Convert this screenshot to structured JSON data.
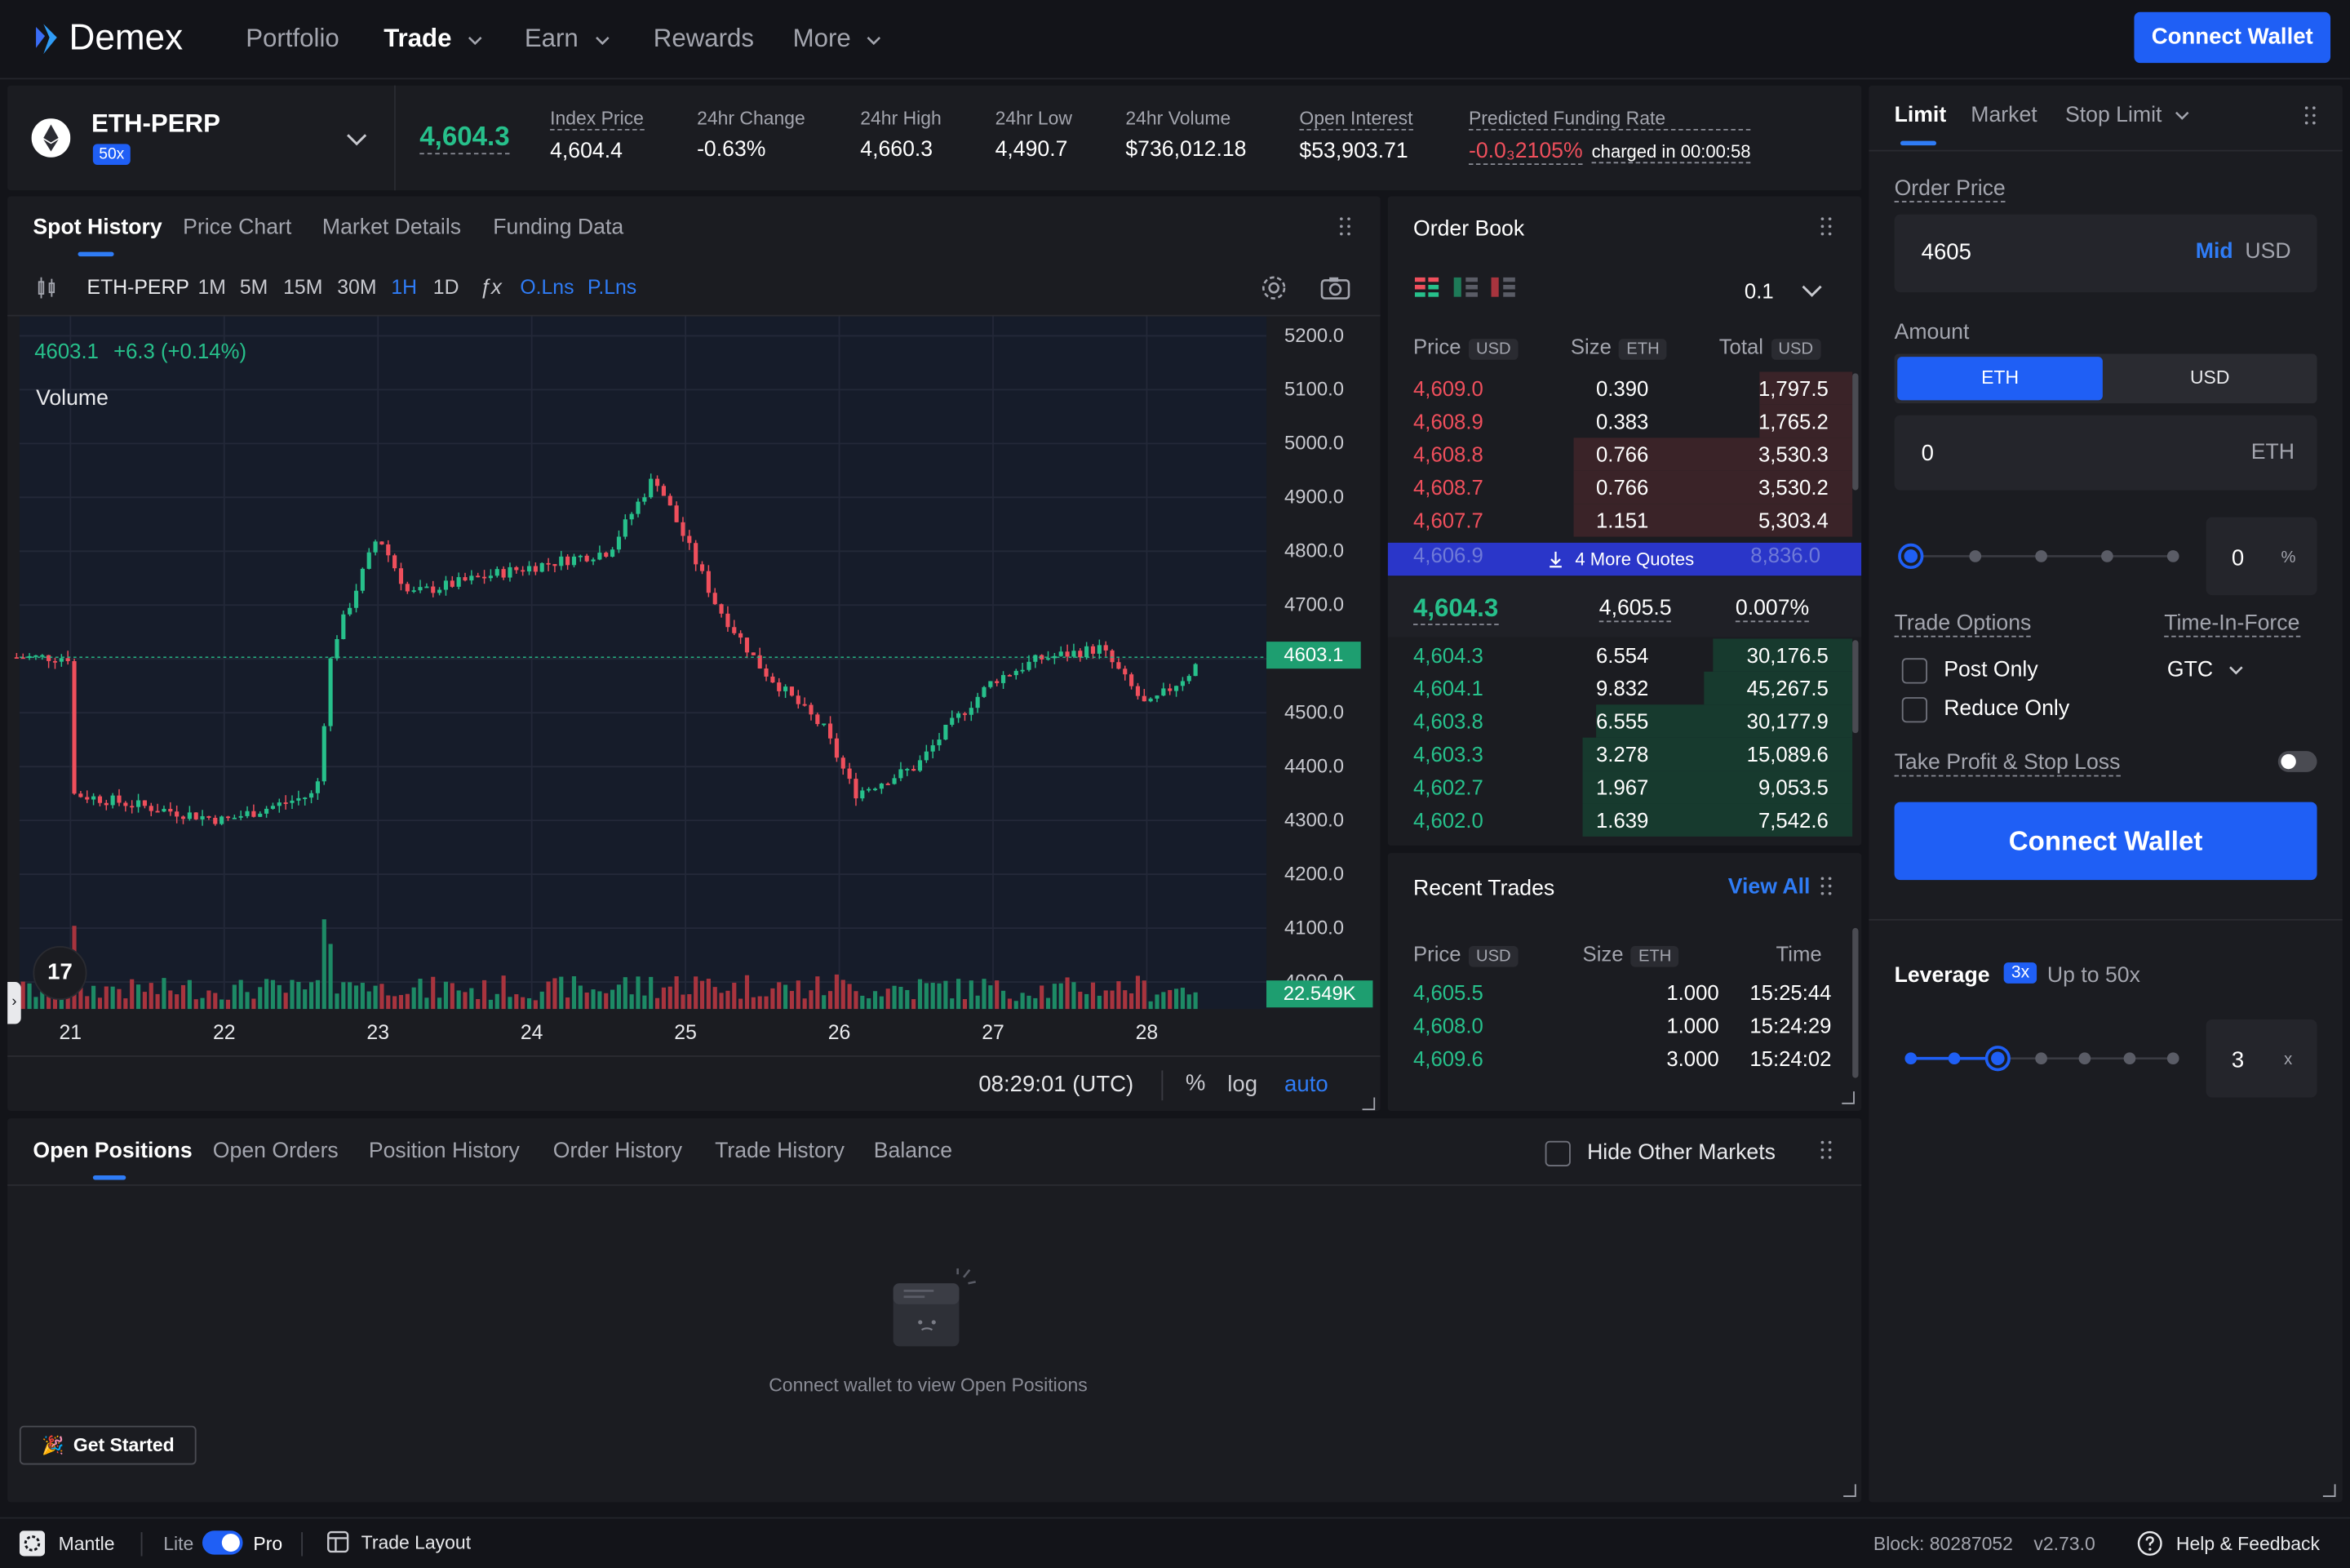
{
  "nav": {
    "logo": "Demex",
    "items": [
      {
        "label": "Portfolio"
      },
      {
        "label": "Trade"
      },
      {
        "label": "Earn"
      },
      {
        "label": "Rewards"
      },
      {
        "label": "More"
      }
    ],
    "connect_label": "Connect Wallet"
  },
  "market": {
    "symbol": "ETH-PERP",
    "leverage_badge": "50x",
    "last_price": "4,604.3",
    "stats": [
      {
        "label": "Index Price",
        "value": "4,604.4",
        "color": "#ffffff"
      },
      {
        "label": "24hr Change",
        "value": "-0.63%",
        "color": "#ef4f5c"
      },
      {
        "label": "24hr High",
        "value": "4,660.3",
        "color": "#27c08b"
      },
      {
        "label": "24hr Low",
        "value": "4,490.7",
        "color": "#ef4f5c"
      },
      {
        "label": "24hr Volume",
        "value": "$736,012.18",
        "color": "#ffffff"
      },
      {
        "label": "Open Interest",
        "value": "$53,903.71",
        "color": "#ffffff"
      }
    ],
    "funding_label": "Predicted Funding Rate",
    "funding_value": "-0.0₃2105%",
    "funding_note": "charged in 00:00:58"
  },
  "chart_panel": {
    "tabs": [
      "Spot History",
      "Price Chart",
      "Market Details",
      "Funding Data"
    ],
    "toolbar": {
      "symbol": "ETH-PERP",
      "intervals": [
        "1M",
        "5M",
        "15M",
        "30M",
        "1H",
        "1D"
      ],
      "active_interval": "1H",
      "indicators": [
        "O.Lns",
        "P.Lns"
      ]
    },
    "legend_price": "4603.1",
    "legend_change": "+6.3 (+0.14%)",
    "volume_label": "Volume",
    "price_tag": "4603.1",
    "volume_tag": "22.549K",
    "clock": "08:29:01 (UTC)",
    "scale_options": [
      "%",
      "log",
      "auto"
    ],
    "tv_logo": "17"
  },
  "chart_data": {
    "type": "candlestick",
    "title": "",
    "x_tick_labels": [
      "21",
      "22",
      "23",
      "24",
      "25",
      "26",
      "27",
      "28"
    ],
    "y_tick_labels": [
      "5200.0",
      "5100.0",
      "5000.0",
      "4900.0",
      "4800.0",
      "4700.0",
      "4600.0",
      "4500.0",
      "4400.0",
      "4300.0",
      "4200.0",
      "4100.0",
      "4000.0"
    ],
    "ylim": [
      4000,
      5200
    ],
    "last": 4603.1,
    "grid": true,
    "key_closes": [
      {
        "day": 21,
        "close": 4350
      },
      {
        "day": 22,
        "close": 4300
      },
      {
        "day": 22.6,
        "close": 4350
      },
      {
        "day": 22.7,
        "close": 4620
      },
      {
        "day": 23,
        "close": 4830
      },
      {
        "day": 23.2,
        "close": 4720
      },
      {
        "day": 23.8,
        "close": 4760
      },
      {
        "day": 24.5,
        "close": 4800
      },
      {
        "day": 24.8,
        "close": 4940
      },
      {
        "day": 25.2,
        "close": 4700
      },
      {
        "day": 25.5,
        "close": 4580
      },
      {
        "day": 25.9,
        "close": 4470
      },
      {
        "day": 26.1,
        "close": 4350
      },
      {
        "day": 26.5,
        "close": 4400
      },
      {
        "day": 26.7,
        "close": 4470
      },
      {
        "day": 27,
        "close": 4560
      },
      {
        "day": 27.3,
        "close": 4600
      },
      {
        "day": 27.7,
        "close": 4620
      },
      {
        "day": 28,
        "close": 4510
      },
      {
        "day": 28.3,
        "close": 4580
      },
      {
        "day": 28.35,
        "close": 4603.1
      }
    ]
  },
  "order_book": {
    "title": "Order Book",
    "tick_size": "0.1",
    "headers": {
      "price": "Price",
      "price_unit": "USD",
      "size": "Size",
      "size_unit": "ETH",
      "total": "Total",
      "total_unit": "USD"
    },
    "asks": [
      {
        "price": "4,609.0",
        "size": "0.390",
        "total": "1,797.5",
        "depth": 0.2
      },
      {
        "price": "4,608.9",
        "size": "0.383",
        "total": "1,765.2",
        "depth": 0.2
      },
      {
        "price": "4,608.8",
        "size": "0.766",
        "total": "3,530.3",
        "depth": 0.6
      },
      {
        "price": "4,608.7",
        "size": "0.766",
        "total": "3,530.2",
        "depth": 0.6
      },
      {
        "price": "4,607.7",
        "size": "1.151",
        "total": "5,303.4",
        "depth": 0.6
      }
    ],
    "more_quotes": "4 More Quotes",
    "hidden_row": {
      "price": "4,606.9",
      "total": "8,836.0"
    },
    "spread": {
      "last": "4,604.3",
      "mark": "4,605.5",
      "pct": "0.007%"
    },
    "bids": [
      {
        "price": "4,604.3",
        "size": "6.554",
        "total": "30,176.5",
        "depth": 0.3
      },
      {
        "price": "4,604.1",
        "size": "9.832",
        "total": "45,267.5",
        "depth": 0.32
      },
      {
        "price": "4,603.8",
        "size": "6.555",
        "total": "30,177.9",
        "depth": 0.55
      },
      {
        "price": "4,603.3",
        "size": "3.278",
        "total": "15,089.6",
        "depth": 0.58
      },
      {
        "price": "4,602.7",
        "size": "1.967",
        "total": "9,053.5",
        "depth": 0.58
      },
      {
        "price": "4,602.0",
        "size": "1.639",
        "total": "7,542.6",
        "depth": 0.58
      }
    ]
  },
  "recent_trades": {
    "title": "Recent Trades",
    "view_all": "View All",
    "headers": {
      "price": "Price",
      "price_unit": "USD",
      "size": "Size",
      "size_unit": "ETH",
      "time": "Time"
    },
    "rows": [
      {
        "price": "4,605.5",
        "size": "1.000",
        "time": "15:25:44"
      },
      {
        "price": "4,608.0",
        "size": "1.000",
        "time": "15:24:29"
      },
      {
        "price": "4,609.6",
        "size": "3.000",
        "time": "15:24:02"
      }
    ]
  },
  "positions": {
    "tabs": [
      "Open Positions",
      "Open Orders",
      "Position History",
      "Order History",
      "Trade History",
      "Balance"
    ],
    "hide_label": "Hide Other Markets",
    "empty_text": "Connect wallet to view Open Positions",
    "get_started": "Get Started"
  },
  "order_form": {
    "tabs": [
      "Limit",
      "Market",
      "Stop Limit"
    ],
    "price_label": "Order Price",
    "price_value": "4605",
    "mid_label": "Mid",
    "price_unit": "USD",
    "amount_label": "Amount",
    "amount_toggle": [
      "ETH",
      "USD"
    ],
    "amount_value": "0",
    "amount_unit": "ETH",
    "percent_value": "0",
    "percent_unit": "%",
    "trade_options_label": "Trade Options",
    "tif_label": "Time-In-Force",
    "tif_value": "GTC",
    "post_only": "Post Only",
    "reduce_only": "Reduce Only",
    "tpsl_label": "Take Profit & Stop Loss",
    "connect_label": "Connect Wallet",
    "leverage_label": "Leverage",
    "leverage_badge": "3x",
    "leverage_max": "Up to 50x",
    "leverage_value": "3",
    "leverage_unit": "x"
  },
  "footer": {
    "network": "Mantle",
    "lite": "Lite",
    "pro": "Pro",
    "layout": "Trade Layout",
    "block": "Block: 80287052",
    "version": "v2.73.0",
    "help": "Help & Feedback"
  }
}
